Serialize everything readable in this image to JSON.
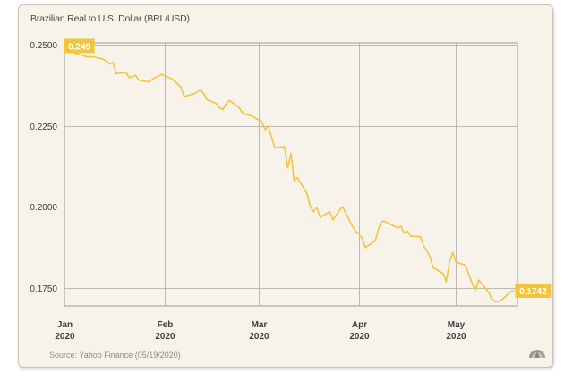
{
  "chart_data": {
    "type": "line",
    "title": "Brazilian Real to U.S. Dollar (BRL/USD)",
    "source": "Source: Yahoo Finance (05/19/2020)",
    "xlabel": "",
    "ylabel": "",
    "ylim": [
      0.1695,
      0.2505
    ],
    "yticks": [
      "0.2500",
      "0.2250",
      "0.2000",
      "0.1750"
    ],
    "ytick_values": [
      0.25,
      0.225,
      0.2,
      0.175
    ],
    "xticks": [
      {
        "month": "Jan",
        "year": "2020"
      },
      {
        "month": "Feb",
        "year": "2020"
      },
      {
        "month": "Mar",
        "year": "2020"
      },
      {
        "month": "Apr",
        "year": "2020"
      },
      {
        "month": "May",
        "year": "2020"
      }
    ],
    "xtick_dates": [
      "2020-01-01",
      "2020-02-01",
      "2020-03-01",
      "2020-04-01",
      "2020-05-01"
    ],
    "xlim": [
      "2020-01-01",
      "2020-05-20"
    ],
    "grid": true,
    "color": "#f2c53d",
    "label_start": "0.249",
    "label_end": "0.1742",
    "series": [
      {
        "values": [
          [
            "2020-01-02",
            0.249
          ],
          [
            "2020-01-03",
            0.2478
          ],
          [
            "2020-01-06",
            0.2468
          ],
          [
            "2020-01-08",
            0.2462
          ],
          [
            "2020-01-10",
            0.2462
          ],
          [
            "2020-01-13",
            0.2455
          ],
          [
            "2020-01-15",
            0.244
          ],
          [
            "2020-01-16",
            0.2445
          ],
          [
            "2020-01-17",
            0.241
          ],
          [
            "2020-01-20",
            0.2415
          ],
          [
            "2020-01-21",
            0.2398
          ],
          [
            "2020-01-23",
            0.2405
          ],
          [
            "2020-01-24",
            0.239
          ],
          [
            "2020-01-27",
            0.2385
          ],
          [
            "2020-01-29",
            0.2398
          ],
          [
            "2020-01-31",
            0.2408
          ],
          [
            "2020-02-03",
            0.2395
          ],
          [
            "2020-02-04",
            0.2388
          ],
          [
            "2020-02-06",
            0.2368
          ],
          [
            "2020-02-07",
            0.234
          ],
          [
            "2020-02-10",
            0.2348
          ],
          [
            "2020-02-12",
            0.236
          ],
          [
            "2020-02-13",
            0.235
          ],
          [
            "2020-02-14",
            0.233
          ],
          [
            "2020-02-17",
            0.2318
          ],
          [
            "2020-02-18",
            0.2305
          ],
          [
            "2020-02-19",
            0.23
          ],
          [
            "2020-02-20",
            0.2318
          ],
          [
            "2020-02-21",
            0.2328
          ],
          [
            "2020-02-24",
            0.2305
          ],
          [
            "2020-02-25",
            0.229
          ],
          [
            "2020-02-26",
            0.2285
          ],
          [
            "2020-02-28",
            0.228
          ],
          [
            "2020-03-02",
            0.2262
          ],
          [
            "2020-03-03",
            0.2238
          ],
          [
            "2020-03-04",
            0.2248
          ],
          [
            "2020-03-05",
            0.2215
          ],
          [
            "2020-03-06",
            0.2182
          ],
          [
            "2020-03-09",
            0.2185
          ],
          [
            "2020-03-10",
            0.212
          ],
          [
            "2020-03-11",
            0.2165
          ],
          [
            "2020-03-12",
            0.208
          ],
          [
            "2020-03-13",
            0.209
          ],
          [
            "2020-03-16",
            0.204
          ],
          [
            "2020-03-17",
            0.2
          ],
          [
            "2020-03-18",
            0.1985
          ],
          [
            "2020-03-19",
            0.1998
          ],
          [
            "2020-03-20",
            0.1968
          ],
          [
            "2020-03-23",
            0.1985
          ],
          [
            "2020-03-24",
            0.196
          ],
          [
            "2020-03-25",
            0.1975
          ],
          [
            "2020-03-26",
            0.199
          ],
          [
            "2020-03-27",
            0.2
          ],
          [
            "2020-03-30",
            0.194
          ],
          [
            "2020-03-31",
            0.1925
          ],
          [
            "2020-04-01",
            0.1915
          ],
          [
            "2020-04-02",
            0.1905
          ],
          [
            "2020-04-03",
            0.1875
          ],
          [
            "2020-04-06",
            0.1895
          ],
          [
            "2020-04-07",
            0.193
          ],
          [
            "2020-04-08",
            0.1955
          ],
          [
            "2020-04-09",
            0.1955
          ],
          [
            "2020-04-13",
            0.1935
          ],
          [
            "2020-04-14",
            0.194
          ],
          [
            "2020-04-15",
            0.1918
          ],
          [
            "2020-04-16",
            0.1925
          ],
          [
            "2020-04-17",
            0.191
          ],
          [
            "2020-04-20",
            0.1908
          ],
          [
            "2020-04-21",
            0.188
          ],
          [
            "2020-04-22",
            0.1865
          ],
          [
            "2020-04-23",
            0.1845
          ],
          [
            "2020-04-24",
            0.1812
          ],
          [
            "2020-04-27",
            0.1795
          ],
          [
            "2020-04-28",
            0.177
          ],
          [
            "2020-04-29",
            0.183
          ],
          [
            "2020-04-30",
            0.186
          ],
          [
            "2020-05-01",
            0.183
          ],
          [
            "2020-05-04",
            0.182
          ],
          [
            "2020-05-05",
            0.179
          ],
          [
            "2020-05-06",
            0.1765
          ],
          [
            "2020-05-07",
            0.1742
          ],
          [
            "2020-05-08",
            0.1775
          ],
          [
            "2020-05-11",
            0.1738
          ],
          [
            "2020-05-12",
            0.1718
          ],
          [
            "2020-05-13",
            0.1708
          ],
          [
            "2020-05-14",
            0.1708
          ],
          [
            "2020-05-15",
            0.1712
          ],
          [
            "2020-05-18",
            0.174
          ],
          [
            "2020-05-19",
            0.1742
          ]
        ]
      }
    ]
  },
  "logo_icon": "source-logo-icon"
}
